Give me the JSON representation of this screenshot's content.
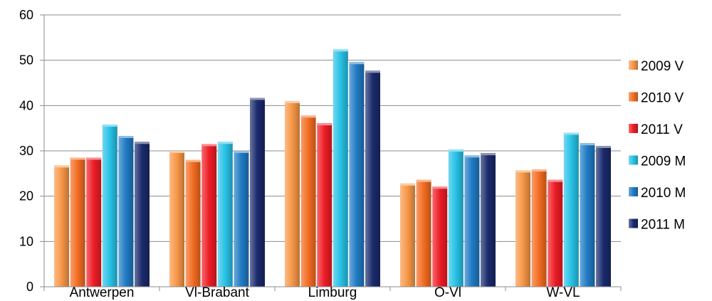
{
  "chart_data": {
    "type": "bar",
    "categories": [
      "Antwerpen",
      "Vl-Brabant",
      "Limburg",
      "O-Vl",
      "W-VL"
    ],
    "series": [
      {
        "name": "2009 V",
        "values": [
          26.8,
          30.0,
          41.0,
          22.8,
          25.7
        ],
        "color": "#f79646"
      },
      {
        "name": "2010 V",
        "values": [
          28.5,
          28.0,
          37.8,
          23.6,
          25.9
        ],
        "color": "#f36c21"
      },
      {
        "name": "2011 V",
        "values": [
          28.5,
          31.5,
          36.1,
          22.1,
          23.6
        ],
        "color": "#ee1c25"
      },
      {
        "name": "2009 M",
        "values": [
          35.8,
          32.0,
          52.4,
          30.3,
          34.0
        ],
        "color": "#27c1e6"
      },
      {
        "name": "2010 M",
        "values": [
          33.3,
          30.0,
          49.6,
          29.0,
          31.7
        ],
        "color": "#1f7bc4"
      },
      {
        "name": "2011 M",
        "values": [
          32.0,
          41.7,
          47.7,
          29.5,
          31.1
        ],
        "color": "#1a2a6c"
      }
    ],
    "ylim": [
      0,
      60
    ],
    "yticks": [
      0,
      10,
      20,
      30,
      40,
      50,
      60
    ],
    "grid": true,
    "legend_position": "right"
  }
}
